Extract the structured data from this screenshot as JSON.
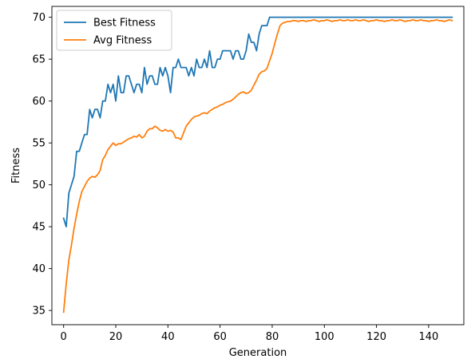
{
  "chart_data": {
    "type": "line",
    "title": "",
    "xlabel": "Generation",
    "ylabel": "Fitness",
    "xlim": [
      -4.5,
      153.5
    ],
    "ylim": [
      33.3,
      71.3
    ],
    "xticks": [
      0,
      20,
      40,
      60,
      80,
      100,
      120,
      140
    ],
    "yticks": [
      35,
      40,
      45,
      50,
      55,
      60,
      65,
      70
    ],
    "grid": false,
    "legend_position": "upper-left",
    "series": [
      {
        "name": "Best Fitness",
        "color": "#1f77b4",
        "x_start": 0,
        "values": [
          46,
          45,
          49,
          50,
          51,
          54,
          54,
          55,
          56,
          56,
          59,
          58,
          59,
          59,
          58,
          60,
          60,
          62,
          61,
          62,
          60,
          63,
          61,
          61,
          63,
          63,
          62,
          61,
          62,
          62,
          61,
          64,
          62,
          63,
          63,
          62,
          62,
          64,
          63,
          64,
          63,
          61,
          64,
          64,
          65,
          64,
          64,
          64,
          63,
          64,
          63,
          65,
          64,
          64,
          65,
          64,
          66,
          64,
          64,
          65,
          65,
          66,
          66,
          66,
          66,
          65,
          66,
          66,
          65,
          65,
          66,
          68,
          67,
          67,
          66,
          68,
          69,
          69,
          69,
          70,
          70,
          70,
          70,
          70,
          70,
          70,
          70,
          70,
          70,
          70,
          70,
          70,
          70,
          70,
          70,
          70,
          70,
          70,
          70,
          70,
          70,
          70,
          70,
          70,
          70,
          70,
          70,
          70,
          70,
          70,
          70,
          70,
          70,
          70,
          70,
          70,
          70,
          70,
          70,
          70,
          70,
          70,
          70,
          70,
          70,
          70,
          70,
          70,
          70,
          70,
          70,
          70,
          70,
          70,
          70,
          70,
          70,
          70,
          70,
          70,
          70,
          70,
          70,
          70,
          70,
          70,
          70,
          70,
          70,
          70
        ]
      },
      {
        "name": "Avg Fitness",
        "color": "#ff7f0e",
        "x_start": 0,
        "values": [
          34.8,
          38.2,
          41,
          42.8,
          44.8,
          46.5,
          48,
          49.2,
          49.8,
          50.4,
          50.8,
          51,
          50.9,
          51.2,
          51.7,
          53,
          53.5,
          54.2,
          54.6,
          55,
          54.7,
          54.9,
          54.9,
          55.1,
          55.3,
          55.5,
          55.6,
          55.8,
          55.7,
          56,
          55.6,
          55.8,
          56.4,
          56.7,
          56.7,
          57,
          56.8,
          56.5,
          56.4,
          56.6,
          56.4,
          56.5,
          56.3,
          55.6,
          55.6,
          55.4,
          56.2,
          57,
          57.4,
          57.8,
          58.1,
          58.2,
          58.3,
          58.5,
          58.6,
          58.5,
          58.8,
          59,
          59.2,
          59.3,
          59.5,
          59.6,
          59.8,
          59.9,
          60,
          60.2,
          60.5,
          60.8,
          61,
          61.1,
          60.9,
          61,
          61.3,
          61.9,
          62.5,
          63.2,
          63.5,
          63.6,
          63.9,
          64.8,
          65.7,
          66.9,
          68,
          69,
          69.3,
          69.4,
          69.5,
          69.5,
          69.6,
          69.6,
          69.5,
          69.6,
          69.6,
          69.5,
          69.6,
          69.6,
          69.7,
          69.6,
          69.5,
          69.6,
          69.6,
          69.7,
          69.6,
          69.5,
          69.6,
          69.6,
          69.7,
          69.6,
          69.6,
          69.7,
          69.6,
          69.6,
          69.7,
          69.6,
          69.6,
          69.7,
          69.6,
          69.5,
          69.6,
          69.6,
          69.7,
          69.6,
          69.6,
          69.5,
          69.6,
          69.6,
          69.7,
          69.6,
          69.6,
          69.7,
          69.6,
          69.5,
          69.6,
          69.6,
          69.7,
          69.6,
          69.6,
          69.7,
          69.6,
          69.6,
          69.5,
          69.6,
          69.6,
          69.7,
          69.6,
          69.6,
          69.5,
          69.6,
          69.7,
          69.6
        ]
      }
    ]
  }
}
